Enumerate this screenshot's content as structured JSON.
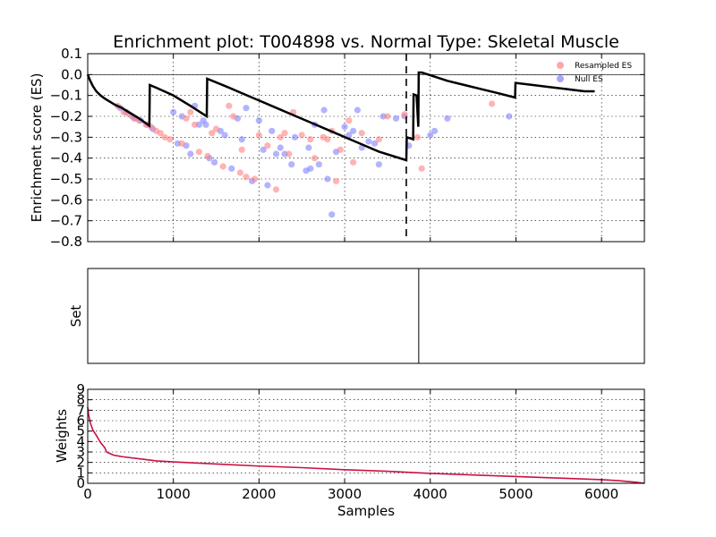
{
  "chart_data": [
    {
      "type": "line",
      "panel": "enrichment",
      "title": "Enrichment plot: T004898 vs. Normal Type: Skeletal Muscle",
      "xlabel": "",
      "ylabel": "Enrichment score (ES)",
      "xlim": [
        0,
        6500
      ],
      "ylim": [
        -0.8,
        0.1
      ],
      "yticks": [
        0.1,
        0.0,
        -0.1,
        -0.2,
        -0.3,
        -0.4,
        -0.5,
        -0.6,
        -0.7,
        -0.8
      ],
      "ytick_labels": [
        "0.1",
        "0.0",
        "−0.1",
        "−0.2",
        "−0.3",
        "−0.4",
        "−0.5",
        "−0.6",
        "−0.7",
        "−0.8"
      ],
      "grid": true,
      "legend": {
        "placement": "top-right",
        "entries": [
          {
            "label": "Resampled ES",
            "color": "#ff8080"
          },
          {
            "label": "Null ES",
            "color": "#8080ff"
          }
        ]
      },
      "es_line": {
        "color": "#000000",
        "x": [
          0,
          30,
          60,
          100,
          150,
          200,
          260,
          320,
          400,
          500,
          600,
          720,
          725,
          800,
          1000,
          1200,
          1390,
          1395,
          1600,
          1800,
          2000,
          2200,
          2400,
          2600,
          2800,
          3000,
          3200,
          3400,
          3720,
          3725,
          3800,
          3805,
          3840,
          3860,
          3865,
          3900,
          4000,
          4200,
          4400,
          4600,
          4800,
          4990,
          4995,
          5200,
          5400,
          5600,
          5800,
          5920
        ],
        "y": [
          0.0,
          -0.03,
          -0.055,
          -0.08,
          -0.1,
          -0.115,
          -0.13,
          -0.145,
          -0.16,
          -0.185,
          -0.21,
          -0.245,
          -0.05,
          -0.063,
          -0.1,
          -0.15,
          -0.2,
          -0.02,
          -0.054,
          -0.089,
          -0.124,
          -0.159,
          -0.194,
          -0.229,
          -0.264,
          -0.299,
          -0.334,
          -0.369,
          -0.41,
          -0.3,
          -0.31,
          -0.095,
          -0.1,
          -0.25,
          0.01,
          0.01,
          -0.003,
          -0.03,
          -0.05,
          -0.07,
          -0.09,
          -0.11,
          -0.04,
          -0.05,
          -0.06,
          -0.07,
          -0.08,
          -0.08
        ]
      },
      "threshold_line": {
        "x": 3720,
        "style": "dashed"
      },
      "resampled_es": [
        [
          350,
          -0.15
        ],
        [
          420,
          -0.18
        ],
        [
          480,
          -0.19
        ],
        [
          540,
          -0.21
        ],
        [
          600,
          -0.22
        ],
        [
          680,
          -0.24
        ],
        [
          740,
          -0.25
        ],
        [
          800,
          -0.27
        ],
        [
          850,
          -0.28
        ],
        [
          900,
          -0.3
        ],
        [
          960,
          -0.31
        ],
        [
          1100,
          -0.33
        ],
        [
          1150,
          -0.21
        ],
        [
          1200,
          -0.18
        ],
        [
          1250,
          -0.24
        ],
        [
          1300,
          -0.37
        ],
        [
          1400,
          -0.39
        ],
        [
          1450,
          -0.28
        ],
        [
          1500,
          -0.26
        ],
        [
          1580,
          -0.44
        ],
        [
          1650,
          -0.15
        ],
        [
          1700,
          -0.2
        ],
        [
          1780,
          -0.47
        ],
        [
          1800,
          -0.36
        ],
        [
          1850,
          -0.49
        ],
        [
          1950,
          -0.5
        ],
        [
          2000,
          -0.29
        ],
        [
          2100,
          -0.34
        ],
        [
          2200,
          -0.55
        ],
        [
          2250,
          -0.3
        ],
        [
          2300,
          -0.28
        ],
        [
          2350,
          -0.38
        ],
        [
          2400,
          -0.18
        ],
        [
          2500,
          -0.29
        ],
        [
          2600,
          -0.31
        ],
        [
          2650,
          -0.4
        ],
        [
          2750,
          -0.3
        ],
        [
          2800,
          -0.31
        ],
        [
          2850,
          -0.27
        ],
        [
          2900,
          -0.51
        ],
        [
          2950,
          -0.36
        ],
        [
          3050,
          -0.22
        ],
        [
          3100,
          -0.42
        ],
        [
          3200,
          -0.28
        ],
        [
          3400,
          -0.31
        ],
        [
          3500,
          -0.2
        ],
        [
          3700,
          -0.19
        ],
        [
          3850,
          -0.3
        ],
        [
          3900,
          -0.45
        ],
        [
          4720,
          -0.14
        ]
      ],
      "null_es": [
        [
          380,
          -0.16
        ],
        [
          450,
          -0.18
        ],
        [
          520,
          -0.2
        ],
        [
          560,
          -0.21
        ],
        [
          620,
          -0.22
        ],
        [
          700,
          -0.24
        ],
        [
          760,
          -0.26
        ],
        [
          1000,
          -0.18
        ],
        [
          1050,
          -0.33
        ],
        [
          1100,
          -0.2
        ],
        [
          1150,
          -0.34
        ],
        [
          1200,
          -0.38
        ],
        [
          1250,
          -0.15
        ],
        [
          1300,
          -0.24
        ],
        [
          1350,
          -0.22
        ],
        [
          1380,
          -0.24
        ],
        [
          1420,
          -0.4
        ],
        [
          1480,
          -0.42
        ],
        [
          1550,
          -0.27
        ],
        [
          1600,
          -0.29
        ],
        [
          1680,
          -0.45
        ],
        [
          1750,
          -0.21
        ],
        [
          1800,
          -0.31
        ],
        [
          1850,
          -0.16
        ],
        [
          1920,
          -0.51
        ],
        [
          2000,
          -0.22
        ],
        [
          2050,
          -0.36
        ],
        [
          2100,
          -0.53
        ],
        [
          2150,
          -0.27
        ],
        [
          2200,
          -0.38
        ],
        [
          2250,
          -0.35
        ],
        [
          2300,
          -0.38
        ],
        [
          2380,
          -0.43
        ],
        [
          2420,
          -0.3
        ],
        [
          2550,
          -0.46
        ],
        [
          2580,
          -0.35
        ],
        [
          2600,
          -0.45
        ],
        [
          2650,
          -0.24
        ],
        [
          2700,
          -0.43
        ],
        [
          2760,
          -0.17
        ],
        [
          2800,
          -0.5
        ],
        [
          2850,
          -0.67
        ],
        [
          2900,
          -0.37
        ],
        [
          3000,
          -0.25
        ],
        [
          3050,
          -0.29
        ],
        [
          3100,
          -0.27
        ],
        [
          3150,
          -0.17
        ],
        [
          3200,
          -0.35
        ],
        [
          3280,
          -0.32
        ],
        [
          3350,
          -0.33
        ],
        [
          3400,
          -0.43
        ],
        [
          3450,
          -0.2
        ],
        [
          3600,
          -0.21
        ],
        [
          3700,
          -0.2
        ],
        [
          3750,
          -0.34
        ],
        [
          4000,
          -0.29
        ],
        [
          4050,
          -0.27
        ],
        [
          4200,
          -0.21
        ],
        [
          4920,
          -0.2
        ]
      ]
    },
    {
      "type": "line",
      "panel": "set",
      "title": "",
      "xlabel": "",
      "ylabel": "Set",
      "xlim": [
        0,
        6500
      ],
      "set_hits": [
        3865
      ]
    },
    {
      "type": "line",
      "panel": "weights",
      "title": "",
      "xlabel": "Samples",
      "ylabel": "Weights",
      "xlim": [
        0,
        6500
      ],
      "ylim": [
        0,
        9
      ],
      "yticks": [
        0,
        1,
        2,
        3,
        4,
        5,
        6,
        7,
        8,
        9
      ],
      "ytick_labels": [
        "0",
        "1",
        "2",
        "3",
        "4",
        "5",
        "6",
        "7",
        "8",
        "9"
      ],
      "xticks": [
        0,
        1000,
        2000,
        3000,
        4000,
        5000,
        6000
      ],
      "xtick_labels": [
        "0",
        "1000",
        "2000",
        "3000",
        "4000",
        "5000",
        "6000"
      ],
      "grid": true,
      "series": [
        {
          "color": "#cc1144",
          "x": [
            0,
            10,
            30,
            60,
            100,
            150,
            200,
            220,
            300,
            400,
            600,
            800,
            1000,
            1500,
            2000,
            2500,
            3000,
            3500,
            4000,
            4500,
            5000,
            5500,
            6000,
            6200,
            6400,
            6500
          ],
          "y": [
            7.3,
            6.6,
            5.8,
            5.1,
            4.6,
            3.9,
            3.4,
            3.0,
            2.7,
            2.55,
            2.35,
            2.15,
            2.05,
            1.85,
            1.65,
            1.5,
            1.3,
            1.15,
            0.95,
            0.8,
            0.65,
            0.5,
            0.35,
            0.25,
            0.1,
            0.0
          ]
        }
      ]
    }
  ]
}
